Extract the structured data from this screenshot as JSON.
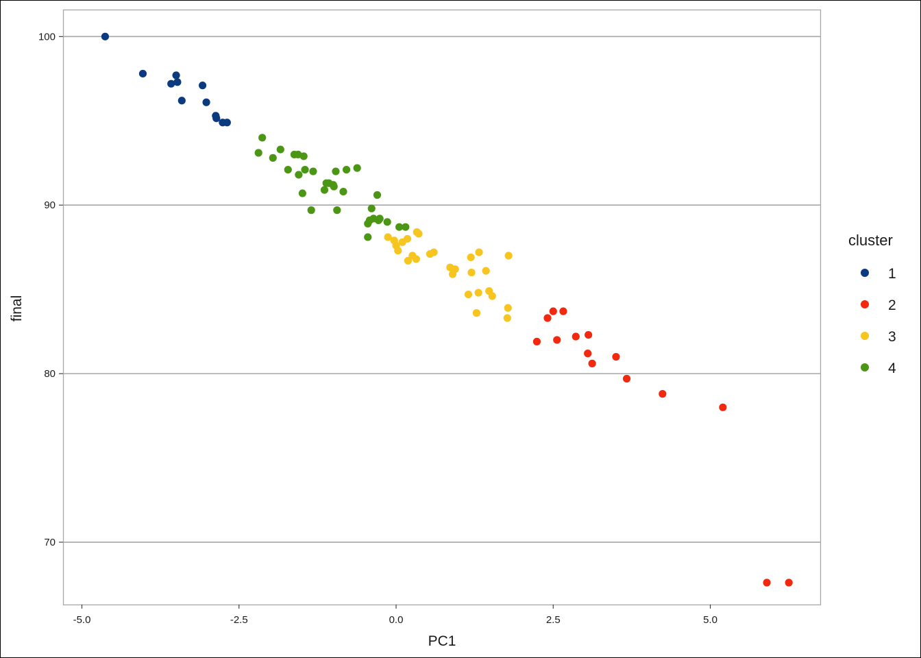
{
  "chart_data": {
    "type": "scatter",
    "title": "",
    "xlabel": "PC1",
    "ylabel": "final",
    "xlim": [
      -5.3,
      6.75
    ],
    "ylim": [
      66.3,
      101.6
    ],
    "x_ticks": [
      -5.0,
      -2.5,
      0.0,
      2.5,
      5.0
    ],
    "x_tick_labels": [
      "-5.0",
      "-2.5",
      "0.0",
      "2.5",
      "5.0"
    ],
    "y_ticks": [
      70,
      80,
      90,
      100
    ],
    "y_tick_labels": [
      "70",
      "80",
      "90",
      "100"
    ],
    "grid": "horizontal major",
    "legend": {
      "title": "cluster",
      "placement": "right"
    },
    "series": [
      {
        "name": "1",
        "color": "#0b3a7e",
        "points": [
          [
            -4.63,
            100.0
          ],
          [
            -4.03,
            97.8
          ],
          [
            -3.58,
            97.2
          ],
          [
            -3.5,
            97.7
          ],
          [
            -3.48,
            97.3
          ],
          [
            -3.41,
            96.2
          ],
          [
            -3.08,
            97.1
          ],
          [
            -3.02,
            96.1
          ],
          [
            -2.87,
            95.3
          ],
          [
            -2.86,
            95.15
          ],
          [
            -2.76,
            94.9
          ],
          [
            -2.69,
            94.9
          ]
        ]
      },
      {
        "name": "2",
        "color": "#f2280f",
        "points": [
          [
            2.24,
            81.9
          ],
          [
            2.41,
            83.3
          ],
          [
            2.5,
            83.7
          ],
          [
            2.56,
            82.0
          ],
          [
            2.66,
            83.7
          ],
          [
            2.86,
            82.2
          ],
          [
            3.05,
            81.2
          ],
          [
            3.06,
            82.3
          ],
          [
            3.12,
            80.6
          ],
          [
            3.5,
            81.0
          ],
          [
            3.67,
            79.7
          ],
          [
            4.24,
            78.8
          ],
          [
            5.2,
            78.0
          ],
          [
            5.9,
            67.6
          ],
          [
            6.25,
            67.6
          ]
        ]
      },
      {
        "name": "3",
        "color": "#f7c520",
        "points": [
          [
            -0.13,
            88.1
          ],
          [
            -0.03,
            87.9
          ],
          [
            0.0,
            87.6
          ],
          [
            0.03,
            87.3
          ],
          [
            0.1,
            87.8
          ],
          [
            0.18,
            88.0
          ],
          [
            0.19,
            86.7
          ],
          [
            0.26,
            87.0
          ],
          [
            0.32,
            86.8
          ],
          [
            0.33,
            88.4
          ],
          [
            0.36,
            88.3
          ],
          [
            0.54,
            87.1
          ],
          [
            0.6,
            87.2
          ],
          [
            0.86,
            86.3
          ],
          [
            0.9,
            85.9
          ],
          [
            0.94,
            86.2
          ],
          [
            1.15,
            84.7
          ],
          [
            1.19,
            86.9
          ],
          [
            1.2,
            86.0
          ],
          [
            1.28,
            83.6
          ],
          [
            1.31,
            84.8
          ],
          [
            1.32,
            87.2
          ],
          [
            1.43,
            86.1
          ],
          [
            1.48,
            84.9
          ],
          [
            1.53,
            84.6
          ],
          [
            1.77,
            83.3
          ],
          [
            1.78,
            83.9
          ],
          [
            1.79,
            87.0
          ]
        ]
      },
      {
        "name": "4",
        "color": "#4b9615",
        "points": [
          [
            -2.19,
            93.1
          ],
          [
            -2.13,
            94.0
          ],
          [
            -1.96,
            92.8
          ],
          [
            -1.84,
            93.3
          ],
          [
            -1.72,
            92.1
          ],
          [
            -1.62,
            93.0
          ],
          [
            -1.56,
            93.0
          ],
          [
            -1.55,
            91.8
          ],
          [
            -1.49,
            90.7
          ],
          [
            -1.47,
            92.9
          ],
          [
            -1.45,
            92.1
          ],
          [
            -1.35,
            89.7
          ],
          [
            -1.32,
            92.0
          ],
          [
            -1.14,
            90.9
          ],
          [
            -1.11,
            91.3
          ],
          [
            -1.07,
            91.3
          ],
          [
            -1.0,
            91.2
          ],
          [
            -0.99,
            91.1
          ],
          [
            -0.96,
            92.0
          ],
          [
            -0.94,
            89.7
          ],
          [
            -0.84,
            90.8
          ],
          [
            -0.79,
            92.1
          ],
          [
            -0.62,
            92.2
          ],
          [
            -0.45,
            88.1
          ],
          [
            -0.45,
            88.9
          ],
          [
            -0.42,
            89.1
          ],
          [
            -0.39,
            89.8
          ],
          [
            -0.36,
            89.2
          ],
          [
            -0.3,
            90.6
          ],
          [
            -0.28,
            89.1
          ],
          [
            -0.26,
            89.2
          ],
          [
            -0.14,
            89.0
          ],
          [
            0.05,
            88.7
          ],
          [
            0.15,
            88.7
          ]
        ]
      }
    ]
  }
}
